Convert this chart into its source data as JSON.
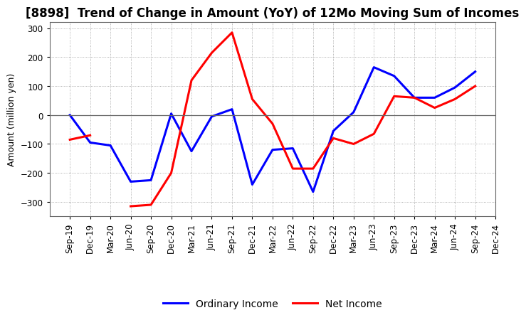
{
  "title": "[8898]  Trend of Change in Amount (YoY) of 12Mo Moving Sum of Incomes",
  "ylabel": "Amount (million yen)",
  "x_labels": [
    "Sep-19",
    "Dec-19",
    "Mar-20",
    "Jun-20",
    "Sep-20",
    "Dec-20",
    "Mar-21",
    "Jun-21",
    "Sep-21",
    "Dec-21",
    "Mar-22",
    "Jun-22",
    "Sep-22",
    "Dec-22",
    "Mar-23",
    "Jun-23",
    "Sep-23",
    "Dec-23",
    "Mar-24",
    "Jun-24",
    "Sep-24",
    "Dec-24"
  ],
  "ordinary_income": [
    0,
    -95,
    -105,
    -230,
    -225,
    5,
    -125,
    -5,
    20,
    -240,
    -120,
    -115,
    -265,
    -55,
    10,
    165,
    135,
    60,
    60,
    95,
    150,
    null
  ],
  "net_income": [
    -85,
    -70,
    null,
    -315,
    -310,
    -200,
    120,
    215,
    285,
    55,
    -30,
    -185,
    -185,
    -80,
    -100,
    -65,
    65,
    60,
    25,
    55,
    100,
    null
  ],
  "ordinary_income_color": "#0000ff",
  "net_income_color": "#ff0000",
  "ylim": [
    -350,
    320
  ],
  "yticks": [
    -300,
    -200,
    -100,
    0,
    100,
    200,
    300
  ],
  "background_color": "#ffffff",
  "grid_color": "#999999",
  "legend_labels": [
    "Ordinary Income",
    "Net Income"
  ],
  "title_fontsize": 12,
  "axis_fontsize": 9,
  "tick_fontsize": 8.5,
  "linewidth": 2.2
}
